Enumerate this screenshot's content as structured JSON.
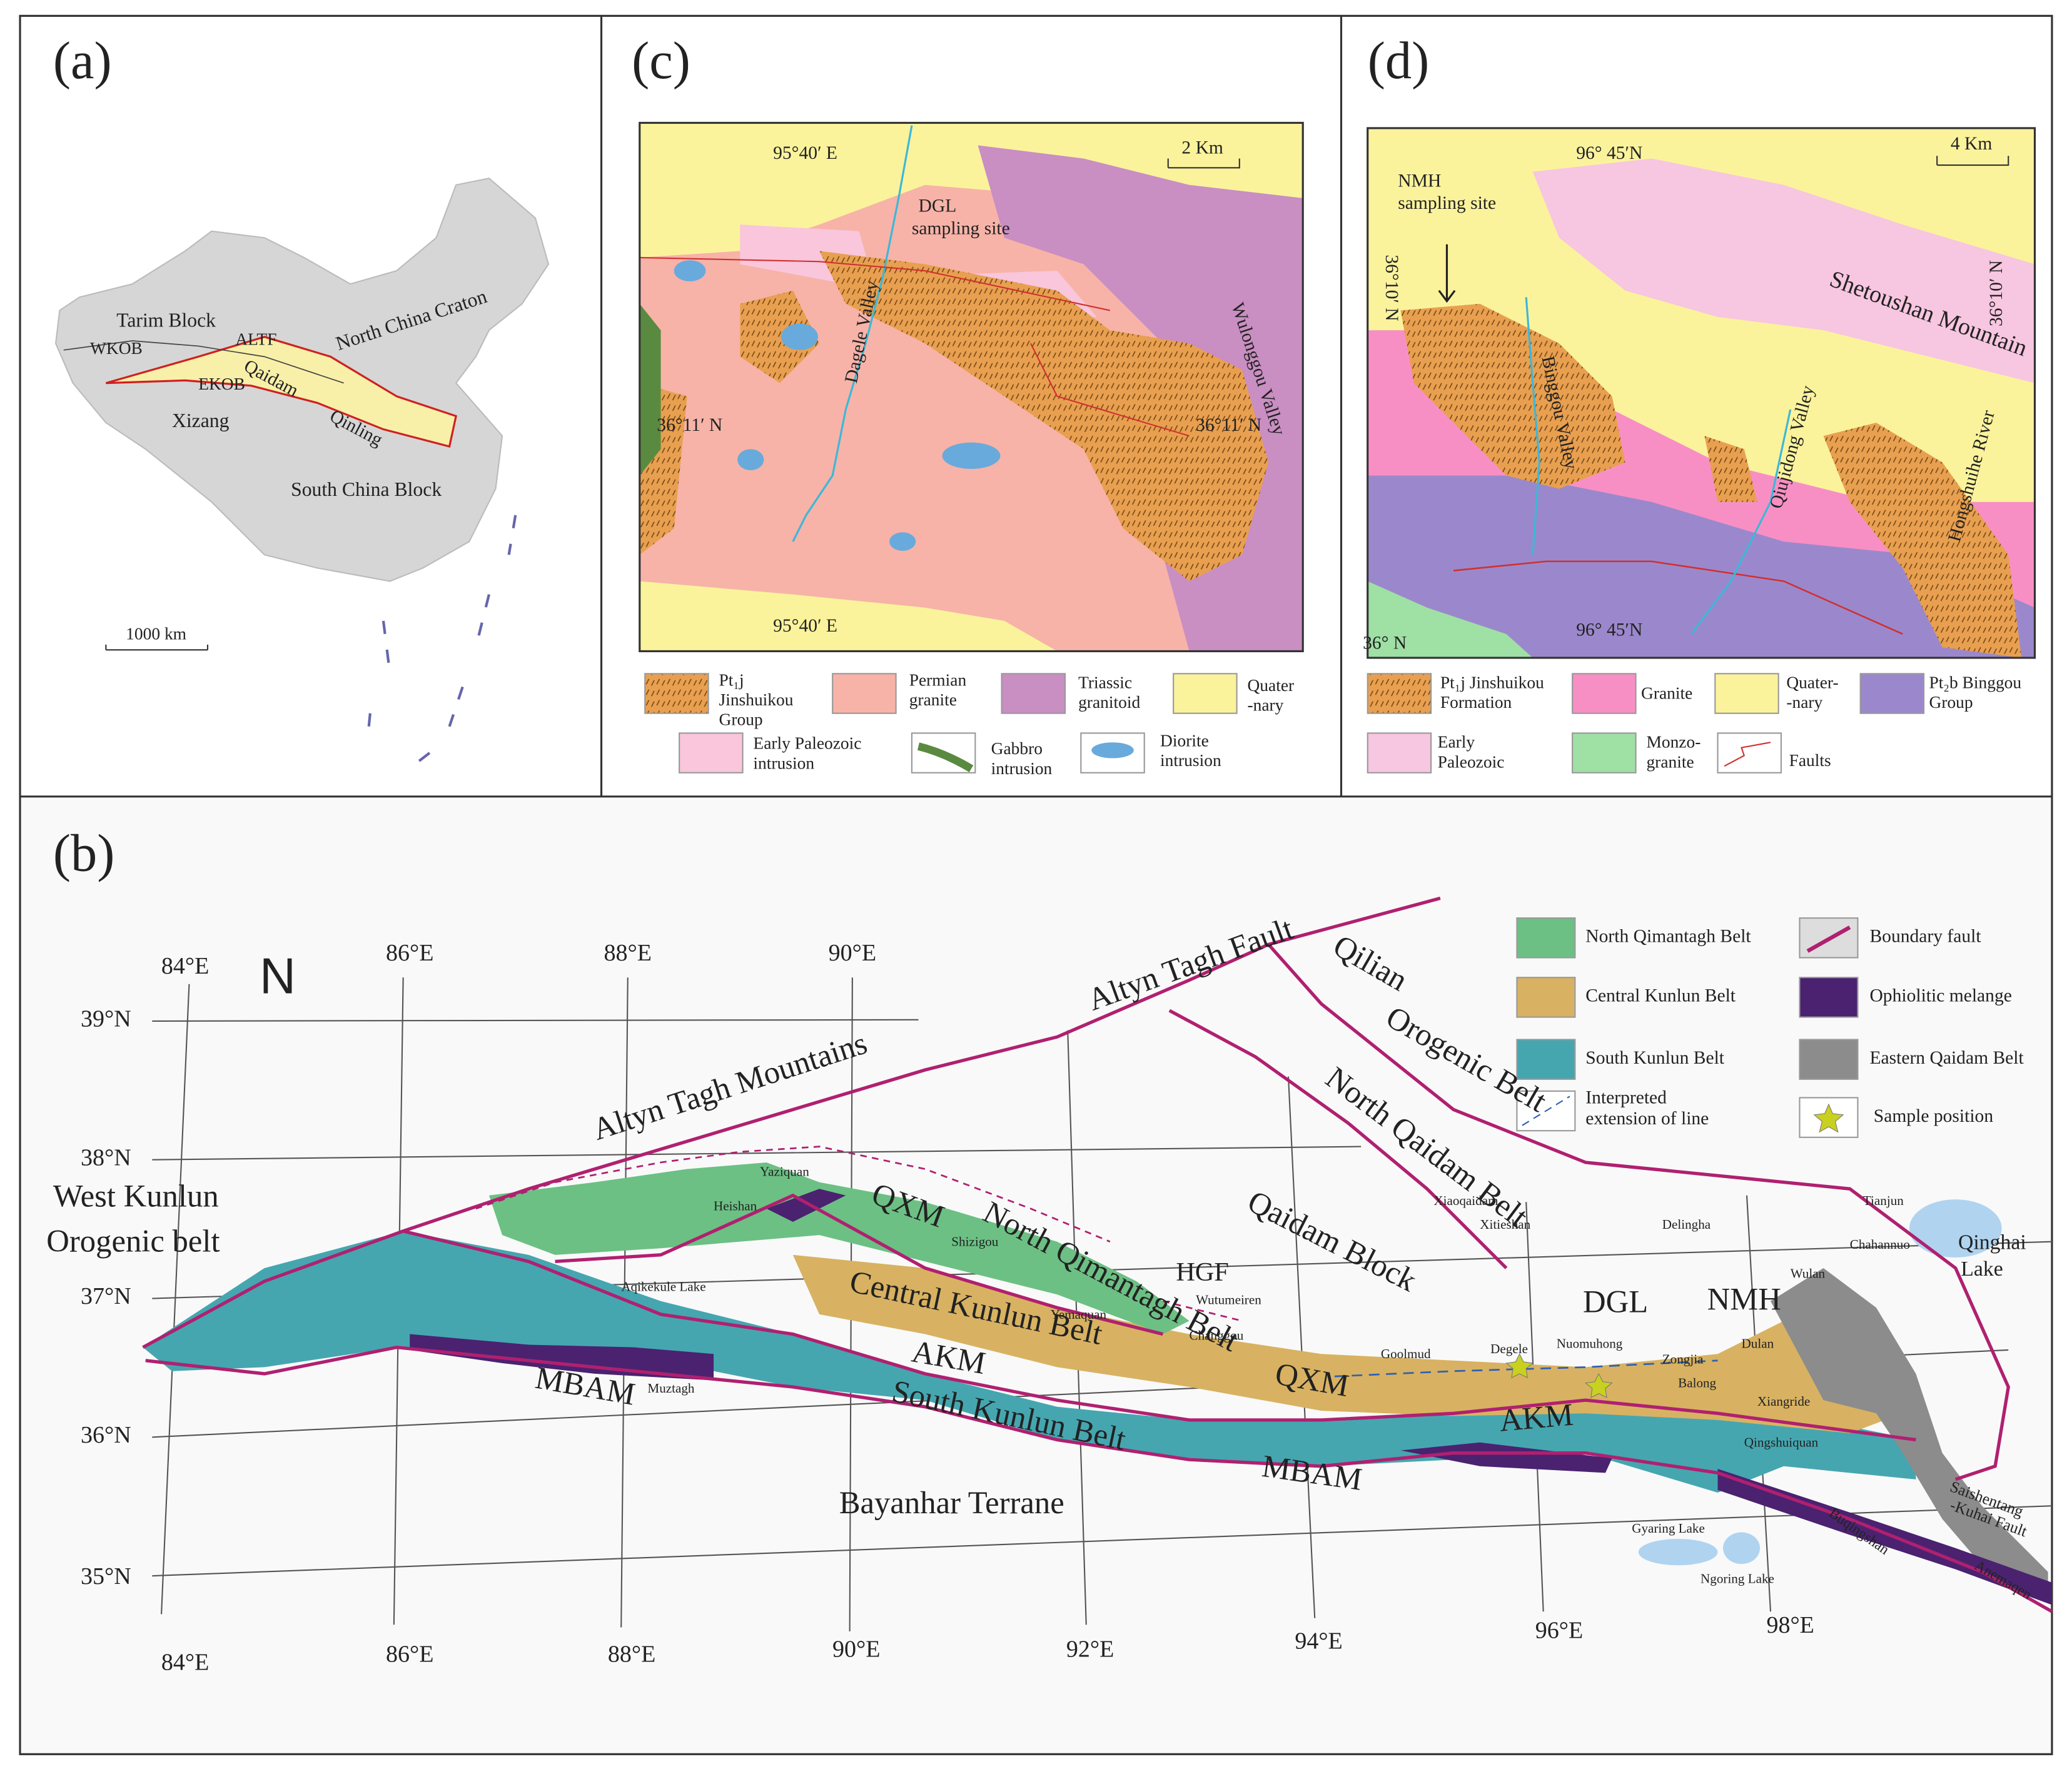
{
  "panel_a": {
    "label": "(a)",
    "texts": [
      "Tarim Block",
      "WKOB",
      "ALTF",
      "Qaidam",
      "EKOB",
      "Qinling",
      "North China Craton",
      "Xizang",
      "South China Block"
    ],
    "scale": "1000 km"
  },
  "panel_c": {
    "label": "(c)",
    "coords": [
      "95°40′ E",
      "95°40′ E",
      "36°11′ N",
      "36°11′ N"
    ],
    "scale": "2 Km",
    "texts": [
      "DGL",
      "sampling site",
      "Dagele Valley",
      "Wulonggou Valley"
    ],
    "legend": [
      [
        "Pt₁j",
        "Jinshuikou",
        "Group"
      ],
      [
        "Permian",
        "granite"
      ],
      [
        "Triassic",
        "granitoid"
      ],
      [
        "Quater",
        "-nary"
      ],
      [
        "Early Paleozoic",
        "intrusion"
      ],
      [
        "Gabbro",
        "intrusion"
      ],
      [
        "Diorite",
        "intrusion"
      ]
    ]
  },
  "panel_d": {
    "label": "(d)",
    "coords": [
      "96° 45′N",
      "96° 45′N",
      "36° N",
      "36°10′ N",
      "36°10′ N"
    ],
    "scale": "4 Km",
    "texts": [
      "NMH",
      "sampling site",
      "Shetoushan Mountain",
      "Binggou Valley",
      "Qiujidong Valley",
      "Hongshuihe River"
    ],
    "legend": [
      [
        "Pt₁j Jinshuikou",
        "Formation"
      ],
      [
        "Granite"
      ],
      [
        "Quater-",
        "-nary"
      ],
      [
        "Pt₂b Binggou",
        "Group"
      ],
      [
        "Early",
        "Paleozoic"
      ],
      [
        "Monzo-",
        "granite"
      ],
      [
        "Faults"
      ]
    ]
  },
  "panel_b": {
    "label": "(b)",
    "north": "N",
    "lat": [
      "39°N",
      "38°N",
      "37°N",
      "36°N",
      "35°N"
    ],
    "lon_top": [
      "84°E",
      "86°E",
      "88°E",
      "90°E"
    ],
    "lon_bottom": [
      "84°E",
      "86°E",
      "88°E",
      "90°E",
      "92°E",
      "94°E",
      "96°E",
      "98°E"
    ],
    "regions": [
      "Altyn Tagh Fault",
      "Qilian",
      "Orogenic Belt",
      "North Qaidam Belt",
      "Altyn Tagh Mountains",
      "West Kunlun",
      "Orogenic belt",
      "North Qimantagh Belt",
      "QXM",
      "Qaidam Block",
      "HGF",
      "Central Kunlun Belt",
      "AKM",
      "QXM",
      "MBAM",
      "South Kunlun Belt",
      "AKM",
      "MBAM",
      "Bayanhar Terrane",
      "DGL",
      "NMH",
      "Qinghai",
      "Lake",
      "Saishentang",
      "-Kuhai Fault",
      "Buqingshan",
      "Anemaqen"
    ],
    "places": [
      "Yaziquan",
      "Heishan",
      "Shizigou",
      "Aqikekule Lake",
      "Yemaquan",
      "Wutumeiren",
      "Changgou",
      "Muztagh",
      "Goolmud",
      "Degele",
      "Nuomuhong",
      "Zongjia",
      "Balong",
      "Dulan",
      "Xiangride",
      "Qingshuiquan",
      "Xiaoqaidam",
      "Xitieshan",
      "Delingha",
      "Tianjun",
      "Chahannuo",
      "Wulan",
      "Gyaring Lake",
      "Ngoring Lake"
    ],
    "legend": [
      [
        "North Qimantagh Belt"
      ],
      [
        "Central Kunlun Belt"
      ],
      [
        "South Kunlun Belt"
      ],
      [
        "Interpreted",
        "extension of line"
      ],
      [
        "Boundary fault"
      ],
      [
        "Ophiolitic melange"
      ],
      [
        "Eastern Qaidam Belt"
      ],
      [
        "Sample position"
      ]
    ]
  }
}
